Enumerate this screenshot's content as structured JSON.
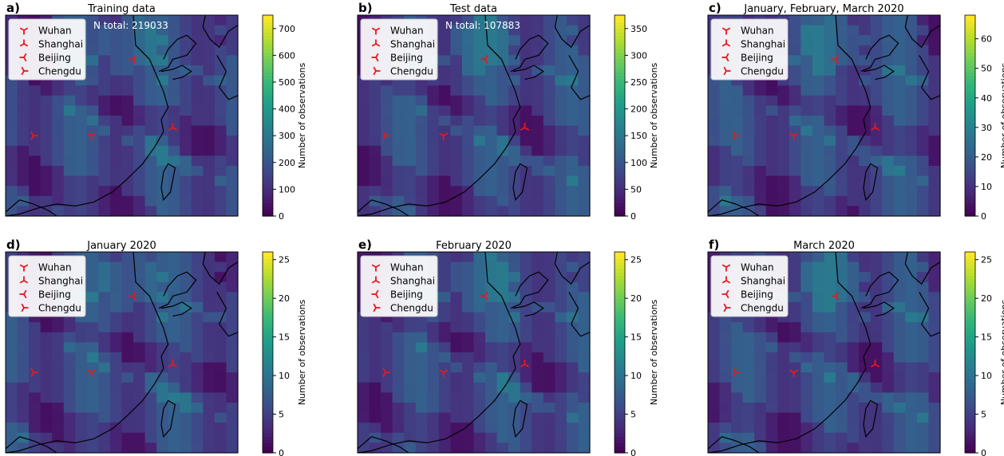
{
  "colors": {
    "colormap": "viridis",
    "viridis": [
      "#440154",
      "#482878",
      "#3e4a89",
      "#31688e",
      "#26828e",
      "#1f9e89",
      "#35b779",
      "#6ece58",
      "#b5de2b",
      "#fde725"
    ],
    "city_marker": "#e41a1c",
    "coastline": "#000000"
  },
  "legend": {
    "cities": [
      {
        "name": "Wuhan",
        "marker": "tri_down"
      },
      {
        "name": "Shanghai",
        "marker": "tri_up"
      },
      {
        "name": "Beijing",
        "marker": "tri_left"
      },
      {
        "name": "Chengdu",
        "marker": "tri_right"
      }
    ]
  },
  "chart_data": [
    {
      "type": "heatmap",
      "panel_label": "a)",
      "title": "Training data",
      "annotation": "N total: 219033",
      "colorbar": {
        "label": "Number of observations",
        "vmin": 0,
        "vmax": 750,
        "ticks": [
          0,
          100,
          200,
          300,
          400,
          500,
          600,
          700
        ]
      },
      "grid": {
        "rows": 20,
        "cols": 20,
        "level_scale": 9.5
      },
      "levels": "aaaabbbbbbccbbbbbbaaaaaabbbbcccccbbbbbbaaaaabbbbccccccbbbbaaaaaabbbbcccccbbbbbbaaaaabcccbcccccbbbbbbaaaabbbbbccbbbbccbbbbbaaaabbbbbbbcbbbccbbbbaaaaabbbbbbbbbbbbbbbbbbaaaaabbbbbbbbbbbbbbcbbaaaaaaabbbbbbbbbbbbcbbaaaaaabbbbbbbbbbbbcbbbaaaaaaabbbbbbbbbbbcbcbaaaaaaaabbbbbbbbbbccbaaaaaaaabbbbbbbbbbcccbbbaaaaaabbbbbbbbbbccbbbaaaaaaaabbbbbbbbbbcbbbaaaaaaaabbbbbbbbbbbcbbaaaaaaaabbbbbbbbbbbbbaaaaaaaabbbbbbbbbbbcbbaaaaaaaabbbbbbbbbbbb"
    },
    {
      "type": "heatmap",
      "panel_label": "b)",
      "title": "Test data",
      "annotation": "N total: 107883",
      "colorbar": {
        "label": "Number of observations",
        "vmin": 0,
        "vmax": 375,
        "ticks": [
          0,
          50,
          100,
          150,
          200,
          250,
          300,
          350
        ]
      },
      "grid": {
        "rows": 20,
        "cols": 20,
        "level_scale": 9.5
      },
      "levels": "aaaabbbbbbccbbbbbbaaaaaabbbbcccccbbbbbbaaaaabbbbccccccbbbbaaaaaabbbbcccccbbbbbbaaaaabcccbcccccbbbbbbaaaabbbbbccbbbbccbbbbbaaaabbbbbbbcbbbccbbbbaaaaabbbbbbbbbbbbbbbbbbaaaaabbbbbbbbbbbbbbcbbaaaaaaabbbbbbbbbbbbcbbaaaaaabbbbbbbbbbbbcbbbaaaaaaabbbbbbbbbbbcbcbaaaaaaaabbbbbbbbbbccbaaaaaaaabbbbbbbbbbcccbbbaaaaaabbbbbbbbbbccbbbaaaaaaaabbbbbbbbbbcbbbaaaaaaaabbbbbbbbbbbcbbaaaaaaaabbbbbbbbbbbbbaaaaaaaabbbbbbbbbbbcbbaaaaaaaabbbbbbbbbbbb"
    },
    {
      "type": "heatmap",
      "panel_label": "c)",
      "title": "January, February, March 2020",
      "annotation": "",
      "colorbar": {
        "label": "Number of observations",
        "vmin": 0,
        "vmax": 68,
        "ticks": [
          0,
          10,
          20,
          30,
          40,
          50,
          60
        ]
      },
      "grid": {
        "rows": 20,
        "cols": 20,
        "level_scale": 9.5
      },
      "levels": "aaaabbbbbbccbbbbbbaaaaaabbbbcccccbbbbbbaaaaabbbbccccccbbbbaaaaaabbbbcccccbbbbbbaaaaabcccbcccccbbbbbbaaaabbbbbccbbbbccbbbbbaaaabbbbbbbcbbbccbbbbaaaaabbbbbbbbbbbbbbbbbbaaaaabbbbbbbbbbbbbbcbbaaaaaaabbbbbbbbbbbbcbbaaaaaabbbbbbbbbbbbcbbbaaaaaaabbbbbbbbbbbcbcbaaaaaaaabbbbbbbbbbccbaaaaaaaabbbbbbbbbbcccbbbaaaaaabbbbbbbbbbccbbbaaaaaaaabbbbbbbbbbcbbbaaaaaaaabbbbbbbbbbbcbbaaaaaaaabbbbbbbbbbbbbaaaaaaaabbbbbbbbbbbcbbaaaaaaaabbbbbbbbbbbb"
    },
    {
      "type": "heatmap",
      "panel_label": "d)",
      "title": "January 2020",
      "annotation": "",
      "colorbar": {
        "label": "Number of observations",
        "vmin": 0,
        "vmax": 26,
        "ticks": [
          0,
          5,
          10,
          15,
          20,
          25
        ]
      },
      "grid": {
        "rows": 20,
        "cols": 20,
        "level_scale": 9.5
      },
      "levels": "aaaabbbbbbccbbbbbbaaaaaabbbbcccccbbbbbbaaaaabbbbccccccbbbbaaaaaabbbbcccccbbbbbbaaaaabcccbcccccbbbbbbaaaabbbbbccbbbbccbbbbbaaaabbbbbbbcbbbccbbbbaaaaabbbbbbbbbbbbbbbbbbaaaaabbbbbbbbbbbbbbcbbaaaaaaabbbbbbbbbbbbcbbaaaaaabbbbbbbbbbbbcbbbaaaaaaabbbbbbbbbbbcbcbaaaaaaaabbbbbbbbbbccbaaaaaaaabbbbbbbbbbcccbbbaaaaaabbbbbbbbbbccbbbaaaaaaaabbbbbbbbbbcbbbaaaaaaaabbbbbbbbbbbcbbaaaaaaaabbbbbbbbbbbbbaaaaaaaabbbbbbbbbbbcbbaaaaaaaabbbbbbbbbbbb"
    },
    {
      "type": "heatmap",
      "panel_label": "e)",
      "title": "February 2020",
      "annotation": "",
      "colorbar": {
        "label": "Number of observations",
        "vmin": 0,
        "vmax": 26,
        "ticks": [
          0,
          5,
          10,
          15,
          20,
          25
        ]
      },
      "grid": {
        "rows": 20,
        "cols": 20,
        "level_scale": 9.5
      },
      "levels": "aaaabbbbbbccbbbbbbaaaaaabbbbcccccbbbbbbaaaaabbbbccccccbbbbaaaaaabbbbcccccbbbbbbaaaaabcccbcccccbbbbbbaaaabbbbbccbbbbccbbbbbaaaabbbbbbbcbbbccbbbbaaaaabbbbbbbbbbbbbbbbbbaaaaabbbbbbbbbbbbbbcbbaaaaaaabbbbbbbbbbbbcbbaaaaaabbbbbbbbbbbbcbbbaaaaaaabbbbbbbbbbbcbcbaaaaaaaabbbbbbbbbbccbaaaaaaaabbbbbbbbbbcccbbbaaaaaabbbbbbbbbbccbbbaaaaaaaabbbbbbbbbbcbbbaaaaaaaabbbbbbbbbbbcbbaaaaaaaabbbbbbbbbbbbbaaaaaaaabbbbbbbbbbbcbbaaaaaaaabbbbbbbbbbbb"
    },
    {
      "type": "heatmap",
      "panel_label": "f)",
      "title": "March 2020",
      "annotation": "",
      "colorbar": {
        "label": "Number of observations",
        "vmin": 0,
        "vmax": 26,
        "ticks": [
          0,
          5,
          10,
          15,
          20,
          25
        ]
      },
      "grid": {
        "rows": 20,
        "cols": 20,
        "level_scale": 9.5
      },
      "levels": "aaaabbbbbbccbbbbbbaaaaaabbbbcccccbbbbbbaaaaabbbbccccccbbbbaaaaaabbbbcccccbbbbbbaaaaabcccbcccccbbbbbbaaaabbbbbccbbbbccbbbbbaaaabbbbbbbcbbbccbbbbaaaaabbbbbbbbbbbbbbbbbbaaaaabbbbbbbbbbbbbbcbbaaaaaaabbbbbbbbbbbbcbbaaaaaabbbbbbbbbbbbcbbbaaaaaaabbbbbbbbbbbcbcbaaaaaaaabbbbbbbbbbccbaaaaaaaabbbbbbbbbbcccbbbaaaaaabbbbbbbbbbccbbbaaaaaaaabbbbbbbbbbcbbbaaaaaaaabbbbbbbbbbbcbbaaaaaaaabbbbbbbbbbbbbaaaaaaaabbbbbbbbbbbcbbaaaaaaaabbbbbbbbbbbb"
    }
  ]
}
